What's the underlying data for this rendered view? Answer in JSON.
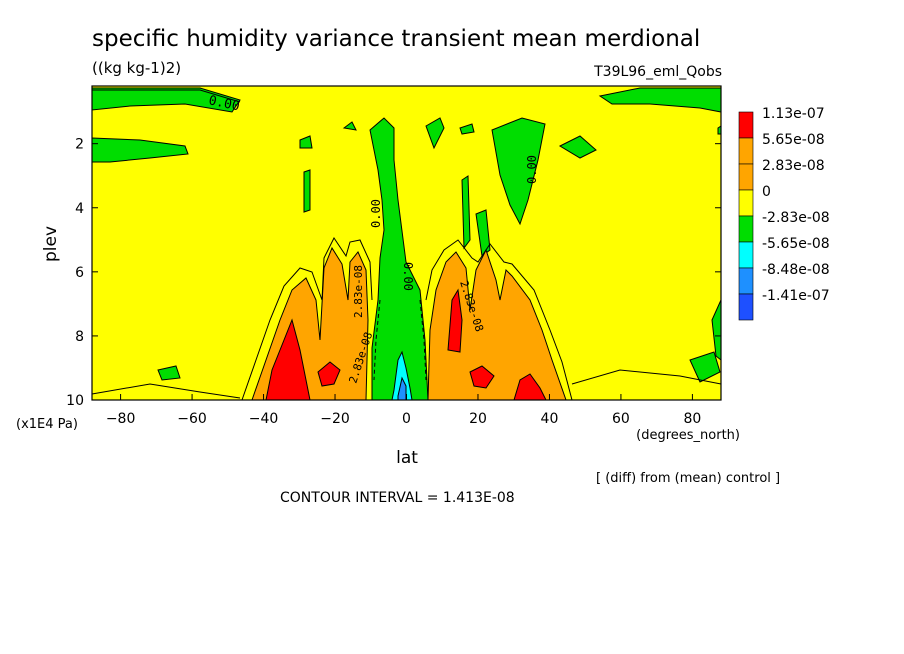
{
  "chart_data": {
    "type": "heatmap",
    "title": "specific humidity variance transient mean merdional",
    "units": "((kg kg-1)2)",
    "experiment": "T39L96_eml_Qobs",
    "xlabel": "lat",
    "x_units": "(degrees_north)",
    "ylabel": "plev",
    "y_units": "(x1E4 Pa)",
    "xlim": [
      -88,
      88
    ],
    "ylim": [
      10,
      0.2
    ],
    "x_ticks": [
      "-80",
      "-60",
      "-40",
      "-20",
      "0",
      "20",
      "40",
      "60",
      "80"
    ],
    "y_ticks": [
      "2",
      "4",
      "6",
      "8",
      "10"
    ],
    "footer_note": "[ (diff) from (mean) control ]",
    "contour_interval": "CONTOUR INTERVAL = 1.413E-08",
    "legend": {
      "labels": [
        "1.13e-07",
        "5.65e-08",
        "2.83e-08",
        "0",
        "-2.83e-08",
        "-5.65e-08",
        "-8.48e-08",
        "-1.41e-07"
      ],
      "colors": [
        "#ff0000",
        "#ffa500",
        "#ffa500",
        "#ffff00",
        "#00dd00",
        "#00ffff",
        "#1e90ff",
        "#1e50ff"
      ]
    },
    "contour_labels": [
      "0.00",
      "0.00",
      "0.00",
      "0.00",
      "2.83e-08",
      "2.83e-08",
      "2.83e-08"
    ],
    "fill_colors": {
      "background": "#ffff00",
      "negative_small": "#00dd00",
      "negative_medium": "#00ffff",
      "negative_large": "#1e90ff",
      "positive_small": "#ffa500",
      "positive_large": "#ff0000"
    },
    "regions": [
      {
        "sign": "negative",
        "level": 1,
        "lat": [
          -88,
          -60
        ],
        "plev": [
          0.3,
          0.9
        ]
      },
      {
        "sign": "negative",
        "level": 1,
        "lat": [
          -88,
          -62
        ],
        "plev": [
          1.7,
          2.6
        ]
      },
      {
        "sign": "negative",
        "level": 1,
        "lat": [
          -12,
          5
        ],
        "plev": [
          0.8,
          10
        ]
      },
      {
        "sign": "negative",
        "level": 1,
        "lat": [
          24,
          36
        ],
        "plev": [
          1.5,
          5
        ]
      },
      {
        "sign": "negative",
        "level": 1,
        "lat": [
          45,
          58
        ],
        "plev": [
          1.6,
          2.5
        ]
      },
      {
        "sign": "negative",
        "level": 1,
        "lat": [
          48,
          88
        ],
        "plev": [
          0.2,
          0.9
        ]
      },
      {
        "sign": "negative",
        "level": 1,
        "lat": [
          17,
          23
        ],
        "plev": [
          2.5,
          5
        ]
      },
      {
        "sign": "negative",
        "level": 2,
        "lat": [
          -3,
          1
        ],
        "plev": [
          8.5,
          10
        ]
      },
      {
        "sign": "negative",
        "level": 3,
        "lat": [
          -1,
          1
        ],
        "plev": [
          9.3,
          10
        ]
      },
      {
        "sign": "positive",
        "level": 1,
        "lat": [
          -38,
          -12
        ],
        "plev": [
          5.8,
          10
        ]
      },
      {
        "sign": "positive",
        "level": 1,
        "lat": [
          8,
          36
        ],
        "plev": [
          5.8,
          10
        ]
      },
      {
        "sign": "positive",
        "level": 2,
        "lat": [
          -34,
          -28
        ],
        "plev": [
          7.8,
          10
        ]
      },
      {
        "sign": "positive",
        "level": 2,
        "lat": [
          12,
          16
        ],
        "plev": [
          6.5,
          8.5
        ]
      },
      {
        "sign": "positive",
        "level": 2,
        "lat": [
          32,
          36
        ],
        "plev": [
          9.2,
          10
        ]
      }
    ]
  }
}
